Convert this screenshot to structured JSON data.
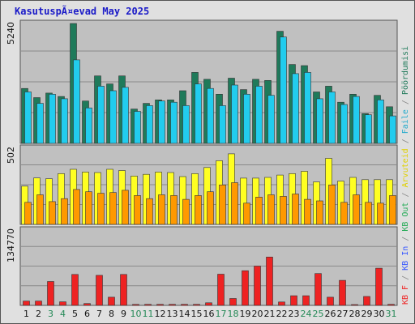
{
  "title": "KasutuspÃ¤evad May 2025",
  "chart_data": {
    "type": "bar",
    "title": "KasutuspÃ¤evad May 2025",
    "categories": [
      "1",
      "2",
      "3",
      "4",
      "5",
      "6",
      "7",
      "8",
      "9",
      "10",
      "11",
      "12",
      "13",
      "14",
      "15",
      "16",
      "17",
      "18",
      "19",
      "20",
      "21",
      "22",
      "23",
      "24",
      "25",
      "26",
      "27",
      "28",
      "29",
      "30",
      "31"
    ],
    "weekend_days": [
      "3",
      "4",
      "10",
      "11",
      "17",
      "18",
      "24",
      "25",
      "31"
    ],
    "panels": [
      {
        "name": "top",
        "ymax": 5240,
        "ymax_label": "5240",
        "series": [
          {
            "name": "Pöördumisi",
            "color": "#1f7a5a",
            "values": [
              2400,
              2000,
              2200,
              2050,
              5240,
              1850,
              2950,
              2600,
              2950,
              1500,
              1750,
              1900,
              1900,
              2300,
              3100,
              2800,
              2150,
              2850,
              2350,
              2800,
              2750,
              4900,
              3450,
              3400,
              2250,
              2500,
              1800,
              2150,
              1300,
              2100,
              1600
            ]
          },
          {
            "name": "Faile",
            "color": "#22ccee",
            "values": [
              2250,
              1750,
              2150,
              1950,
              3650,
              1550,
              2500,
              2300,
              2450,
              1400,
              1650,
              1850,
              1800,
              1650,
              2600,
              2400,
              1650,
              2550,
              2150,
              2500,
              2100,
              4650,
              3050,
              3100,
              1950,
              2250,
              1700,
              2050,
              1250,
              1900,
              1200
            ]
          }
        ]
      },
      {
        "name": "middle",
        "ymax": 502,
        "ymax_label": "502",
        "series": [
          {
            "name": "Arvuteid",
            "color": "#ffff22",
            "values": [
              252,
              306,
              301,
              335,
              363,
              345,
              342,
              363,
              355,
              319,
              330,
              345,
              342,
              315,
              335,
              375,
              420,
              465,
              305,
              305,
              310,
              325,
              335,
              350,
              280,
              435,
              285,
              310,
              295,
              295,
              295
            ]
          },
          {
            "name": "KB Out",
            "color": "#ff9900",
            "values": [
              145,
              195,
              150,
              170,
              230,
              215,
              205,
              210,
              225,
              190,
              170,
              195,
              190,
              165,
              190,
              215,
              260,
              275,
              140,
              180,
              195,
              185,
              200,
              165,
              155,
              260,
              145,
              195,
              145,
              140,
              190
            ]
          }
        ]
      },
      {
        "name": "bottom",
        "ymax": 134770,
        "ymax_label": "134770",
        "series": [
          {
            "name": "KB In",
            "color": "#ee2222",
            "values": [
              7700,
              7700,
              42800,
              6400,
              55400,
              3400,
              53800,
              14600,
              55400,
              1800,
              1900,
              1900,
              1900,
              1900,
              1900,
              4700,
              55800,
              12300,
              62000,
              70300,
              86500,
              6100,
              17200,
              17200,
              57000,
              14600,
              44800,
              1500,
              16000,
              66500,
              1900
            ]
          }
        ]
      }
    ],
    "legend": {
      "placement": "right-vertical",
      "entries": [
        {
          "text": "Pöördumisi",
          "color": "#1f7a5a"
        },
        {
          "text": " / ",
          "color": "#888888"
        },
        {
          "text": "Faile",
          "color": "#22aacc"
        },
        {
          "text": " / ",
          "color": "#888888"
        },
        {
          "text": "Arvuteid",
          "color": "#e0d000"
        },
        {
          "text": " / ",
          "color": "#888888"
        },
        {
          "text": "KB Out",
          "color": "#22aa55"
        },
        {
          "text": " / ",
          "color": "#888888"
        },
        {
          "text": "KB In",
          "color": "#3355ff"
        },
        {
          "text": " / ",
          "color": "#888888"
        },
        {
          "text": "KB F",
          "color": "#ee2222"
        }
      ]
    },
    "grid": true,
    "colors": {
      "plot_bg": "#c0c0c0",
      "gridline": "#8a8a8a",
      "weekday_label": "#111111",
      "weekend_label": "#228855"
    }
  }
}
